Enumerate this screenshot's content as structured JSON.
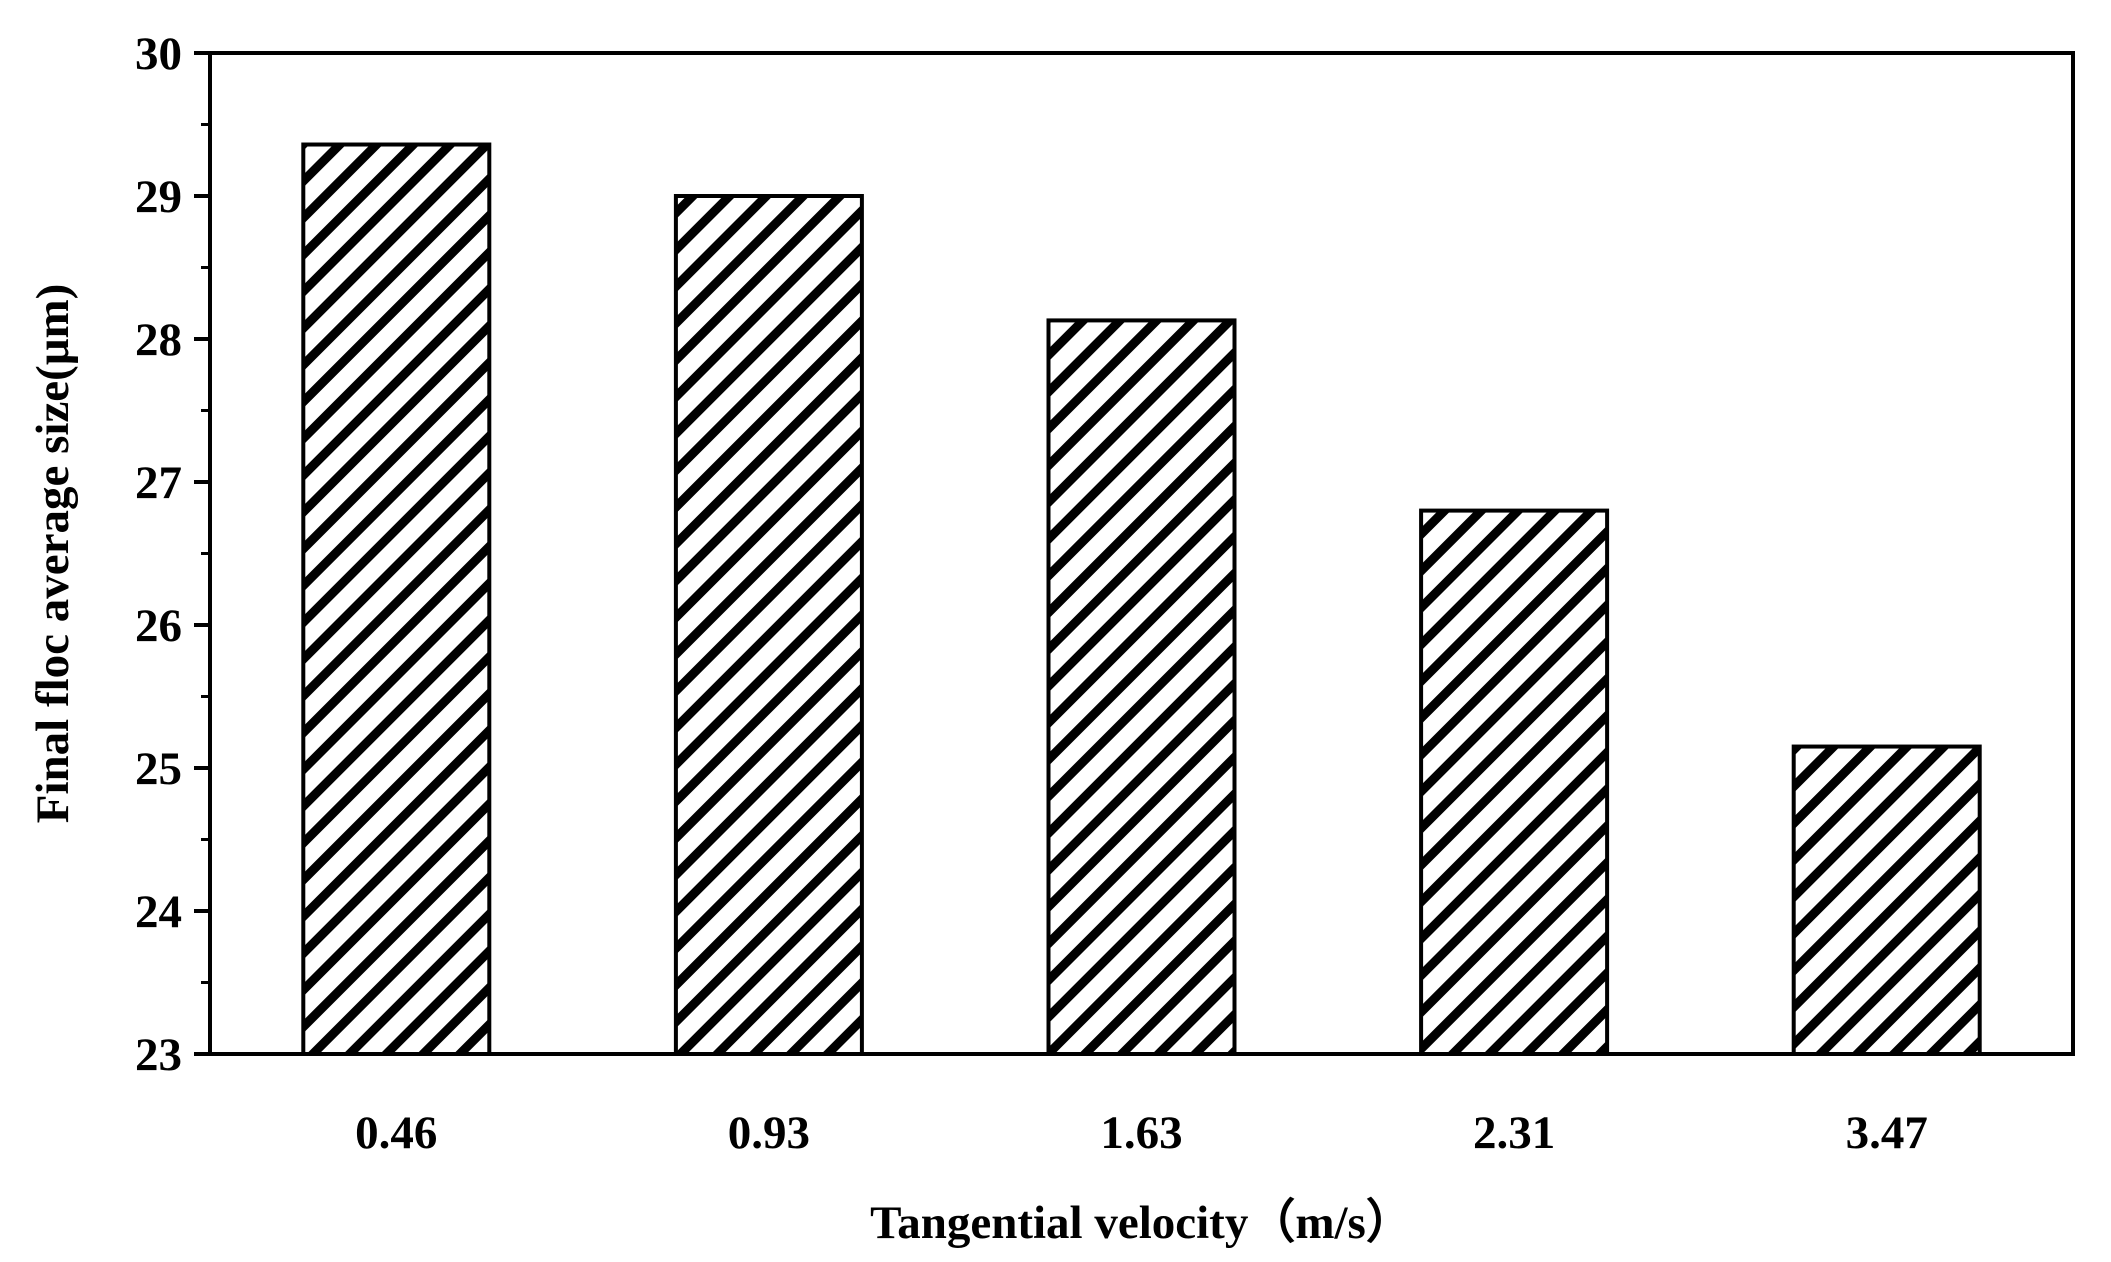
{
  "chart_data": {
    "type": "bar",
    "title": "",
    "xlabel": "Tangential velocity（m/s）",
    "ylabel": "Final floc average size(μm)",
    "categories": [
      "0.46",
      "0.93",
      "1.63",
      "2.31",
      "3.47"
    ],
    "values": [
      29.36,
      29.0,
      28.13,
      26.8,
      25.15
    ],
    "ylim": [
      23,
      30
    ],
    "yticks": [
      "23",
      "24",
      "25",
      "26",
      "27",
      "28",
      "29",
      "30"
    ],
    "grid": false,
    "legend": "none",
    "bar_fill": "hatched diagonal",
    "colors": {
      "bar_stroke": "#000000",
      "bar_fill": "#ffffff",
      "hatch": "#000000",
      "axis": "#000000",
      "background": "#ffffff"
    }
  }
}
